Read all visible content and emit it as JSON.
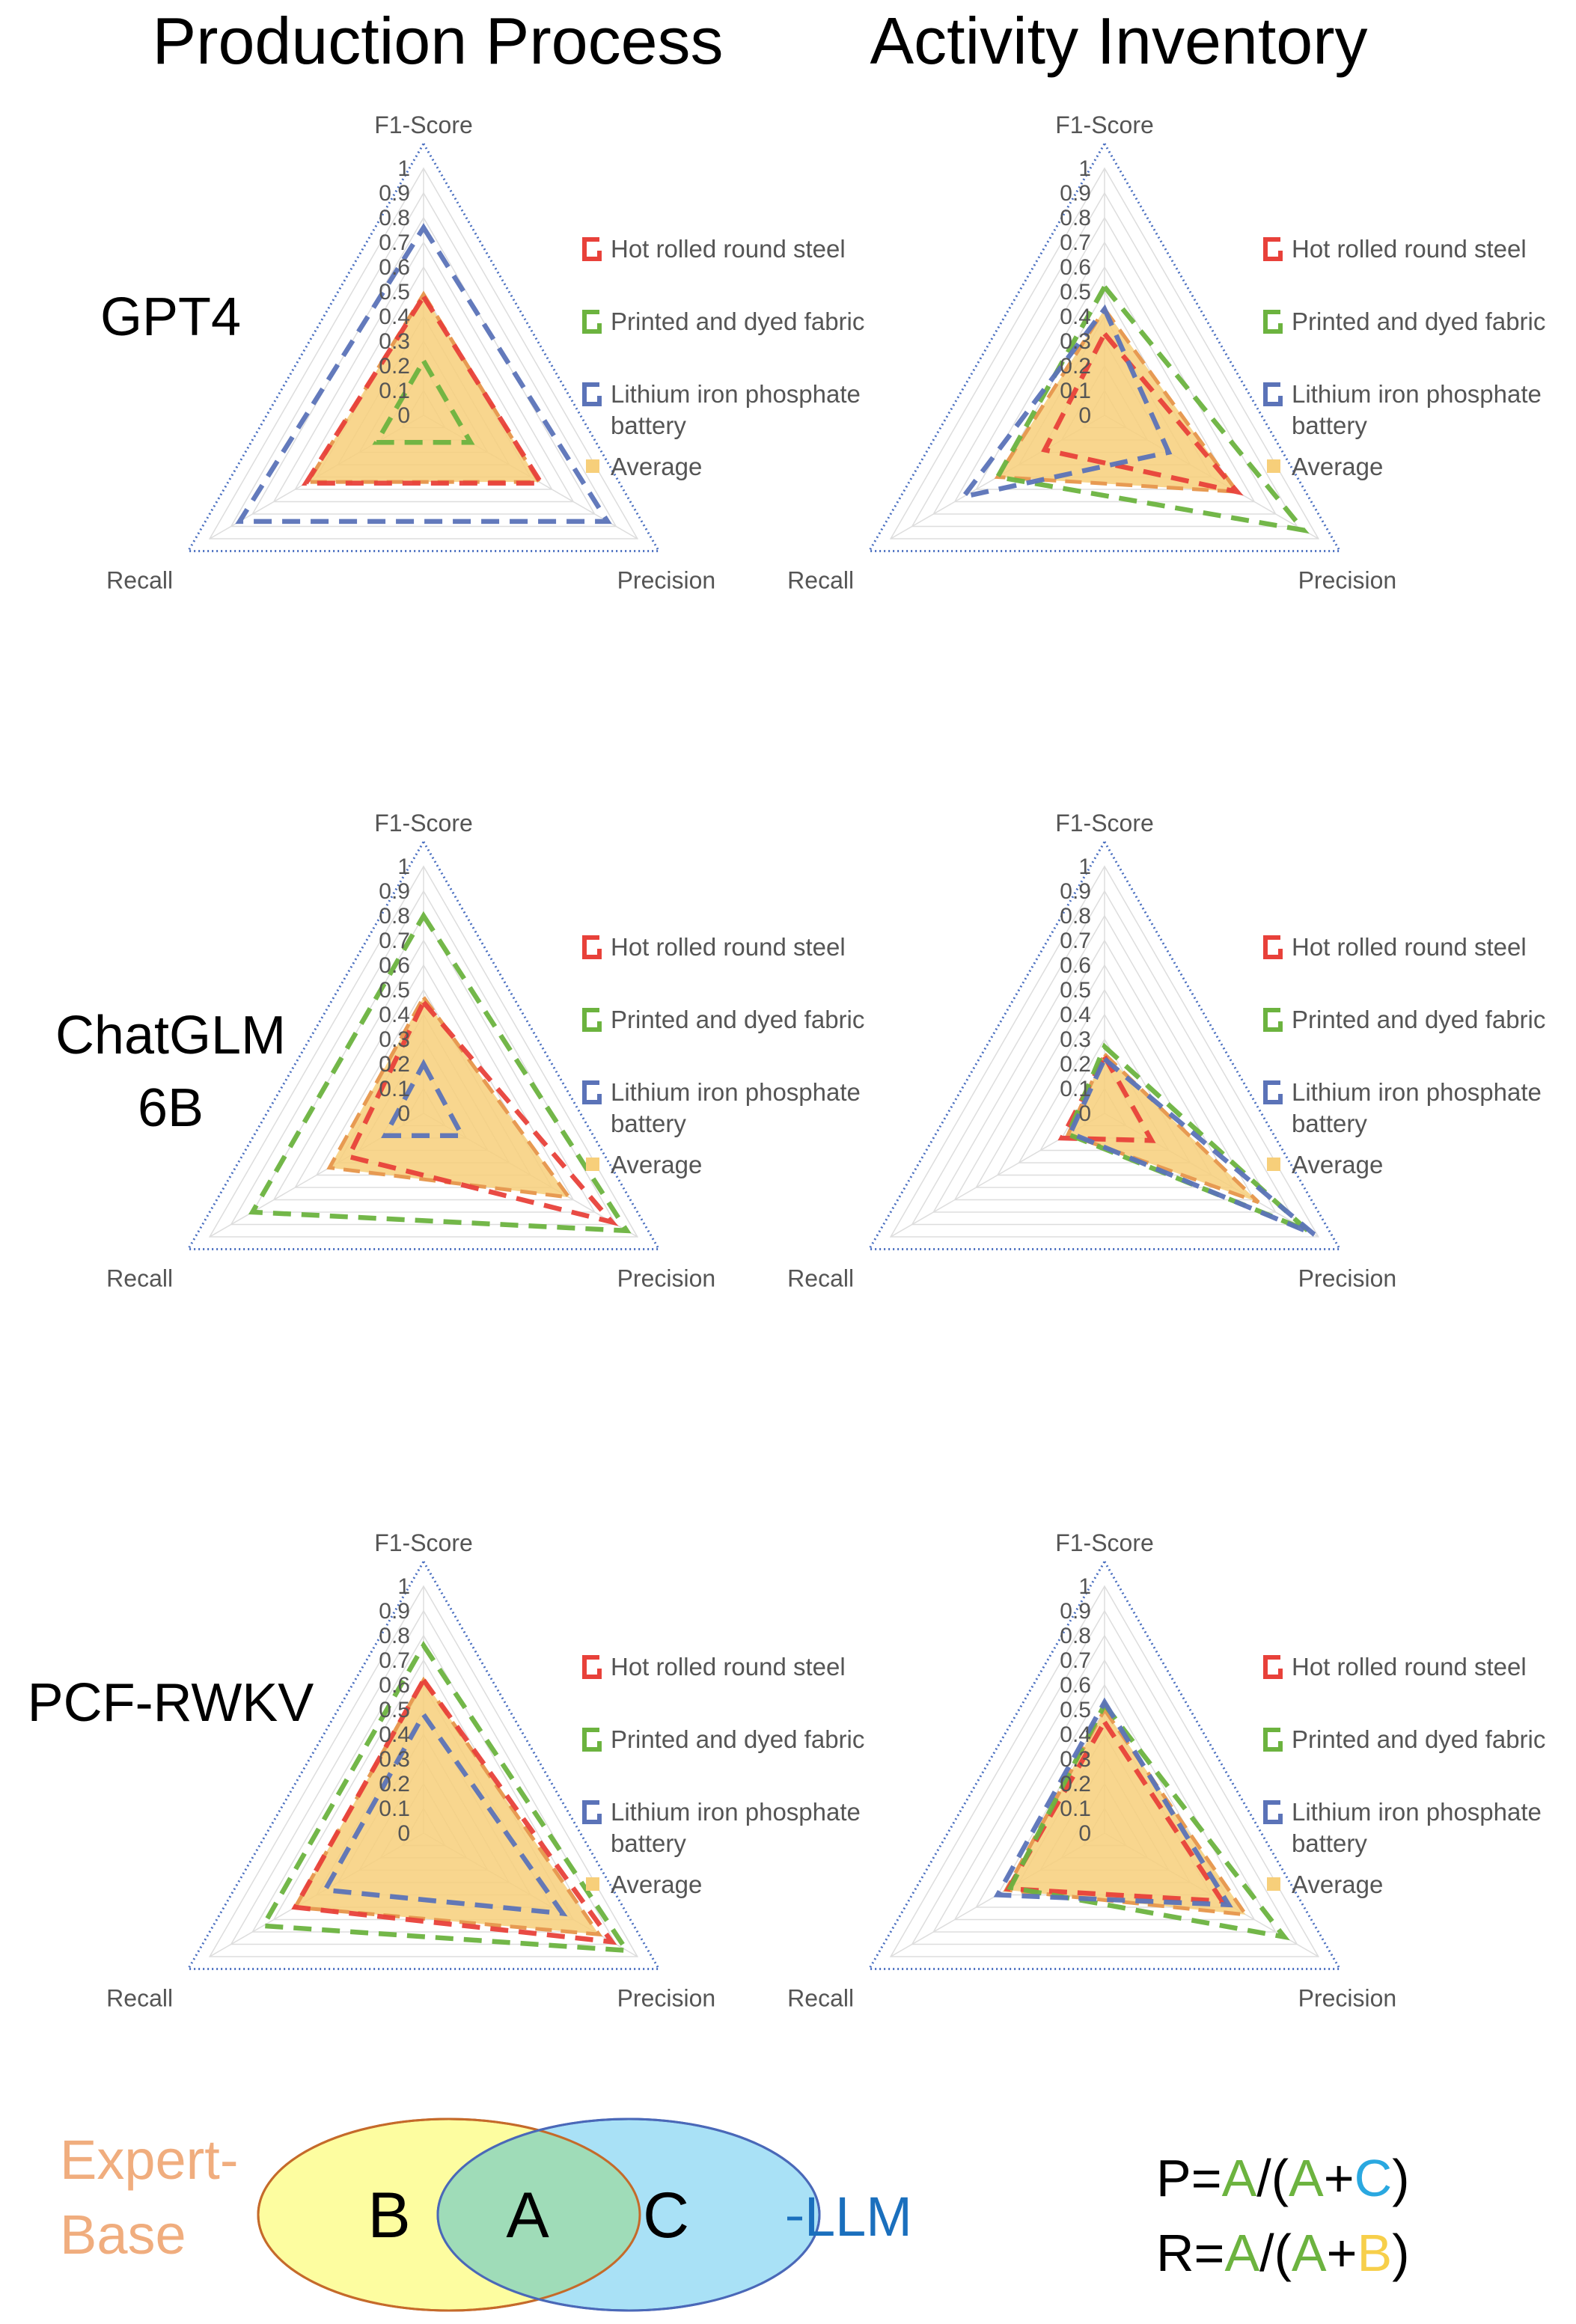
{
  "column_titles": [
    "Production Process",
    "Activity Inventory"
  ],
  "row_labels": [
    {
      "line1": "GPT4",
      "line2": ""
    },
    {
      "line1": "ChatGLM",
      "line2": "6B"
    },
    {
      "line1": "PCF-RWKV",
      "line2": ""
    }
  ],
  "axes": [
    "F1-Score",
    "Precision",
    "Recall"
  ],
  "tick_labels": [
    "0",
    "0.1",
    "0.2",
    "0.3",
    "0.4",
    "0.5",
    "0.6",
    "0.7",
    "0.8",
    "0.9",
    "1"
  ],
  "legend_entries": [
    "Hot rolled round steel",
    "Printed and dyed fabric",
    "Lithium iron phosphate battery",
    "Average"
  ],
  "colors": {
    "steel": "#e8413a",
    "fabric": "#6cb33f",
    "battery": "#5b73b8",
    "average_fill": "#f7cf7a",
    "average_line": "#e79a52",
    "frame": "#4a6fc0",
    "grid": "#dddddd"
  },
  "chart_data": [
    {
      "type": "radar",
      "model": "GPT4",
      "task": "Production Process",
      "axes": [
        "F1-Score",
        "Precision",
        "Recall"
      ],
      "ylim": [
        0,
        1
      ],
      "series": [
        {
          "name": "Hot rolled round steel",
          "values": [
            0.48,
            0.55,
            0.55
          ]
        },
        {
          "name": "Printed and dyed fabric",
          "values": [
            0.22,
            0.22,
            0.22
          ]
        },
        {
          "name": "Lithium iron phosphate battery",
          "values": [
            0.76,
            0.86,
            0.86
          ]
        },
        {
          "name": "Average",
          "values": [
            0.49,
            0.54,
            0.54
          ]
        }
      ]
    },
    {
      "type": "radar",
      "model": "GPT4",
      "task": "Activity Inventory",
      "axes": [
        "F1-Score",
        "Precision",
        "Recall"
      ],
      "ylim": [
        0,
        1
      ],
      "series": [
        {
          "name": "Hot rolled round steel",
          "values": [
            0.33,
            0.62,
            0.28
          ]
        },
        {
          "name": "Printed and dyed fabric",
          "values": [
            0.52,
            0.93,
            0.5
          ]
        },
        {
          "name": "Lithium iron phosphate battery",
          "values": [
            0.43,
            0.3,
            0.66
          ]
        },
        {
          "name": "Average",
          "values": [
            0.43,
            0.62,
            0.5
          ]
        }
      ]
    },
    {
      "type": "radar",
      "model": "ChatGLM 6B",
      "task": "Production Process",
      "axes": [
        "F1-Score",
        "Precision",
        "Recall"
      ],
      "ylim": [
        0,
        1
      ],
      "series": [
        {
          "name": "Hot rolled round steel",
          "values": [
            0.45,
            0.88,
            0.35
          ]
        },
        {
          "name": "Printed and dyed fabric",
          "values": [
            0.8,
            0.95,
            0.8
          ]
        },
        {
          "name": "Lithium iron phosphate battery",
          "values": [
            0.2,
            0.18,
            0.18
          ]
        },
        {
          "name": "Average",
          "values": [
            0.47,
            0.68,
            0.44
          ]
        }
      ]
    },
    {
      "type": "radar",
      "model": "ChatGLM 6B",
      "task": "Activity Inventory",
      "axes": [
        "F1-Score",
        "Precision",
        "Recall"
      ],
      "ylim": [
        0,
        1
      ],
      "series": [
        {
          "name": "Hot rolled round steel",
          "values": [
            0.23,
            0.22,
            0.2
          ]
        },
        {
          "name": "Printed and dyed fabric",
          "values": [
            0.27,
            0.95,
            0.17
          ]
        },
        {
          "name": "Lithium iron phosphate battery",
          "values": [
            0.22,
            0.98,
            0.16
          ]
        },
        {
          "name": "Average",
          "values": [
            0.24,
            0.72,
            0.17
          ]
        }
      ]
    },
    {
      "type": "radar",
      "model": "PCF-RWKV",
      "task": "Production Process",
      "axes": [
        "F1-Score",
        "Precision",
        "Recall"
      ],
      "ylim": [
        0,
        1
      ],
      "series": [
        {
          "name": "Hot rolled round steel",
          "values": [
            0.62,
            0.88,
            0.6
          ]
        },
        {
          "name": "Printed and dyed fabric",
          "values": [
            0.76,
            0.95,
            0.75
          ]
        },
        {
          "name": "Lithium iron phosphate battery",
          "values": [
            0.48,
            0.65,
            0.46
          ]
        },
        {
          "name": "Average",
          "values": [
            0.62,
            0.82,
            0.6
          ]
        }
      ]
    },
    {
      "type": "radar",
      "model": "PCF-RWKV",
      "task": "Activity Inventory",
      "axes": [
        "F1-Score",
        "Precision",
        "Recall"
      ],
      "ylim": [
        0,
        1
      ],
      "series": [
        {
          "name": "Hot rolled round steel",
          "values": [
            0.45,
            0.55,
            0.45
          ]
        },
        {
          "name": "Printed and dyed fabric",
          "values": [
            0.52,
            0.84,
            0.44
          ]
        },
        {
          "name": "Lithium iron phosphate battery",
          "values": [
            0.53,
            0.58,
            0.5
          ]
        },
        {
          "name": "Average",
          "values": [
            0.5,
            0.66,
            0.46
          ]
        }
      ]
    }
  ],
  "venn": {
    "left_label_line1": "Expert-",
    "left_label_line2": "Base",
    "right_label": "LLM",
    "region_b": "B",
    "region_a": "A",
    "region_c": "C"
  },
  "formulas": {
    "precision": {
      "lhs": "P=",
      "a1": "A",
      "mid": "/(",
      "a2": "A",
      "plus": "+",
      "term": "C",
      "close": ")"
    },
    "recall": {
      "lhs": "R=",
      "a1": "A",
      "mid": "/(",
      "a2": "A",
      "plus": "+",
      "term": "B",
      "close": ")"
    }
  }
}
